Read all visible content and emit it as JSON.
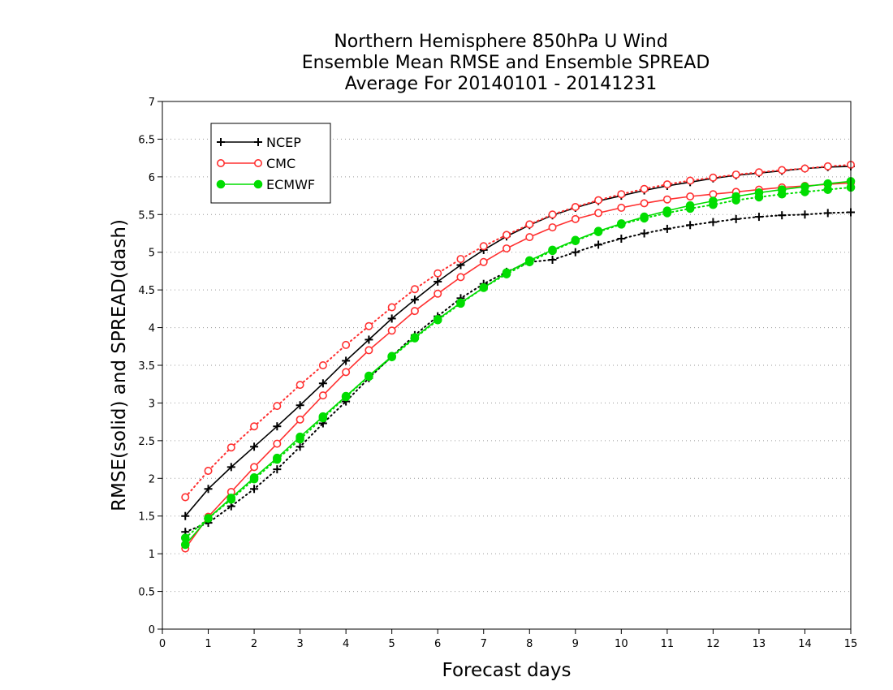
{
  "chart_data": {
    "type": "line",
    "title_lines": [
      "Northern Hemisphere 850hPa U Wind",
      "Ensemble Mean RMSE and Ensemble SPREAD",
      "Average For 20140101 - 20141231"
    ],
    "xlabel": "Forecast days",
    "ylabel": "RMSE(solid) and SPREAD(dash)",
    "xlim": [
      0,
      15
    ],
    "ylim": [
      0,
      7
    ],
    "x_ticks": [
      "0",
      "1",
      "2",
      "3",
      "4",
      "5",
      "6",
      "7",
      "8",
      "9",
      "10",
      "11",
      "12",
      "13",
      "14",
      "15"
    ],
    "y_ticks": [
      "0",
      "0.5",
      "1",
      "1.5",
      "2",
      "2.5",
      "3",
      "3.5",
      "4",
      "4.5",
      "5",
      "5.5",
      "6",
      "6.5",
      "7"
    ],
    "grid": "horizontal dotted",
    "legend_position": "top-left",
    "x": [
      0.5,
      1,
      1.5,
      2,
      2.5,
      3,
      3.5,
      4,
      4.5,
      5,
      5.5,
      6,
      6.5,
      7,
      7.5,
      8,
      8.5,
      9,
      9.5,
      10,
      10.5,
      11,
      11.5,
      12,
      12.5,
      13,
      13.5,
      14,
      14.5,
      15
    ],
    "series": [
      {
        "name": "NCEP",
        "color": "#000000",
        "marker": "plus",
        "rmse": [
          1.5,
          1.86,
          2.15,
          2.42,
          2.69,
          2.97,
          3.26,
          3.56,
          3.84,
          4.12,
          4.37,
          4.61,
          4.83,
          5.03,
          5.21,
          5.36,
          5.49,
          5.59,
          5.68,
          5.75,
          5.82,
          5.88,
          5.93,
          5.98,
          6.02,
          6.05,
          6.08,
          6.11,
          6.13,
          6.14
        ],
        "spread": [
          1.29,
          1.41,
          1.63,
          1.86,
          2.12,
          2.42,
          2.73,
          3.02,
          3.33,
          3.62,
          3.9,
          4.15,
          4.39,
          4.58,
          4.74,
          4.87,
          4.9,
          5.0,
          5.1,
          5.18,
          5.25,
          5.31,
          5.36,
          5.4,
          5.44,
          5.47,
          5.49,
          5.5,
          5.52,
          5.53
        ]
      },
      {
        "name": "CMC",
        "color": "#ff3030",
        "marker": "open-circle",
        "rmse": [
          1.07,
          1.49,
          1.82,
          2.15,
          2.46,
          2.78,
          3.1,
          3.41,
          3.7,
          3.96,
          4.22,
          4.45,
          4.67,
          4.87,
          5.05,
          5.2,
          5.33,
          5.44,
          5.52,
          5.59,
          5.65,
          5.7,
          5.74,
          5.77,
          5.8,
          5.83,
          5.86,
          5.88,
          5.9,
          5.92
        ],
        "spread": [
          1.75,
          2.1,
          2.41,
          2.69,
          2.96,
          3.24,
          3.5,
          3.77,
          4.02,
          4.27,
          4.51,
          4.72,
          4.91,
          5.08,
          5.23,
          5.37,
          5.5,
          5.6,
          5.69,
          5.77,
          5.84,
          5.9,
          5.95,
          5.99,
          6.03,
          6.06,
          6.09,
          6.11,
          6.14,
          6.16
        ]
      },
      {
        "name": "ECMWF",
        "color": "#00dd00",
        "marker": "filled-circle",
        "rmse": [
          1.12,
          1.47,
          1.74,
          2.01,
          2.27,
          2.55,
          2.82,
          3.09,
          3.36,
          3.62,
          3.87,
          4.11,
          4.33,
          4.53,
          4.73,
          4.89,
          5.03,
          5.16,
          5.28,
          5.38,
          5.47,
          5.55,
          5.62,
          5.68,
          5.74,
          5.79,
          5.83,
          5.87,
          5.91,
          5.94
        ],
        "spread": [
          1.21,
          1.47,
          1.72,
          1.99,
          2.25,
          2.52,
          2.8,
          3.08,
          3.35,
          3.61,
          3.86,
          4.1,
          4.32,
          4.53,
          4.71,
          4.87,
          5.02,
          5.15,
          5.27,
          5.37,
          5.45,
          5.52,
          5.58,
          5.63,
          5.69,
          5.73,
          5.77,
          5.8,
          5.83,
          5.86
        ]
      }
    ]
  }
}
